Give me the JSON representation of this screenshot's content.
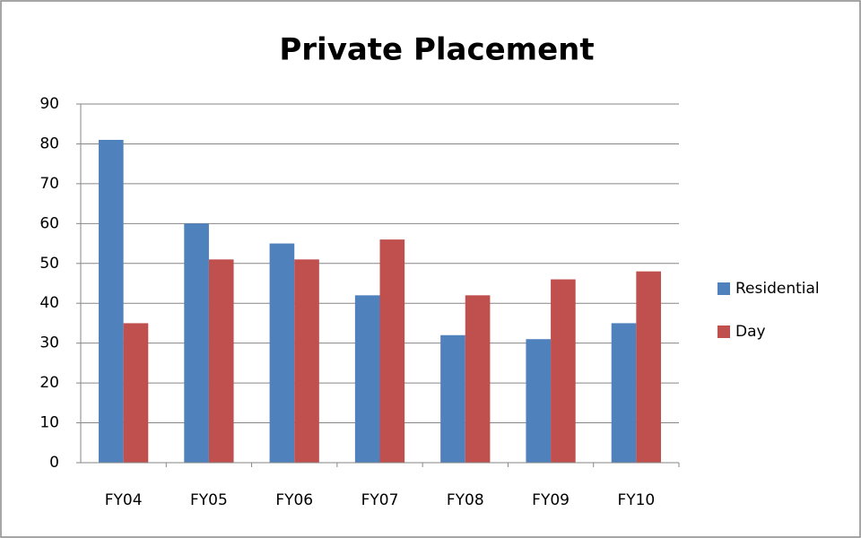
{
  "chart_data": {
    "type": "bar",
    "title": "Private Placement",
    "categories": [
      "FY04",
      "FY05",
      "FY06",
      "FY07",
      "FY08",
      "FY09",
      "FY10"
    ],
    "series": [
      {
        "name": "Residential",
        "color": "#4f81bd",
        "values": [
          81,
          60,
          55,
          42,
          32,
          31,
          35
        ]
      },
      {
        "name": "Day",
        "color": "#c0504d",
        "values": [
          35,
          51,
          51,
          56,
          42,
          46,
          48
        ]
      }
    ],
    "ylim": [
      0,
      90
    ],
    "yticks": [
      0,
      10,
      20,
      30,
      40,
      50,
      60,
      70,
      80,
      90
    ],
    "grid": true,
    "legend": "right"
  }
}
